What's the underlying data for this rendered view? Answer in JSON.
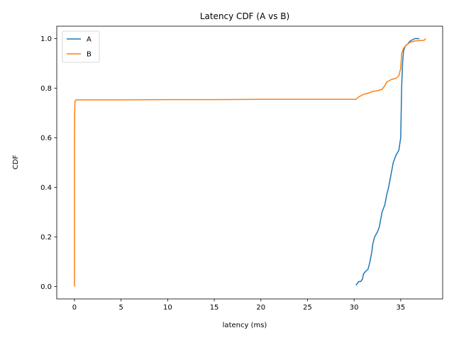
{
  "chart_data": {
    "type": "line",
    "title": "Latency CDF (A vs B)",
    "xlabel": "latency (ms)",
    "ylabel": "CDF",
    "xlim": [
      -1.9,
      39.5
    ],
    "ylim": [
      -0.05,
      1.05
    ],
    "xticks": [
      0,
      5,
      10,
      15,
      20,
      25,
      30,
      35
    ],
    "yticks": [
      0.0,
      0.2,
      0.4,
      0.6,
      0.8,
      1.0
    ],
    "xtick_labels": [
      "0",
      "5",
      "10",
      "15",
      "20",
      "25",
      "30",
      "35"
    ],
    "ytick_labels": [
      "0.0",
      "0.2",
      "0.4",
      "0.6",
      "0.8",
      "1.0"
    ],
    "grid": false,
    "legend_position": "upper-left",
    "series": [
      {
        "name": "A",
        "color": "#1f77b4",
        "x": [
          30.2,
          30.5,
          30.7,
          30.9,
          31.0,
          31.2,
          31.5,
          31.7,
          31.9,
          32.0,
          32.2,
          32.5,
          32.7,
          32.9,
          33.0,
          33.3,
          33.5,
          33.7,
          33.9,
          34.2,
          34.5,
          34.8,
          35.0,
          35.05,
          35.1,
          35.2,
          35.3,
          35.5,
          35.8,
          36.0,
          36.5,
          37.0
        ],
        "y": [
          0.005,
          0.02,
          0.02,
          0.03,
          0.05,
          0.06,
          0.07,
          0.1,
          0.14,
          0.17,
          0.2,
          0.22,
          0.24,
          0.28,
          0.3,
          0.33,
          0.37,
          0.4,
          0.44,
          0.5,
          0.53,
          0.55,
          0.6,
          0.7,
          0.8,
          0.9,
          0.95,
          0.97,
          0.98,
          0.99,
          1.0,
          1.0
        ]
      },
      {
        "name": "B",
        "color": "#ff7f0e",
        "x": [
          0.0,
          0.0,
          0.02,
          0.05,
          0.1,
          0.2,
          0.5,
          1.0,
          5,
          10,
          15,
          20,
          25,
          30.2,
          30.5,
          31.0,
          31.5,
          32.0,
          32.5,
          33.0,
          33.3,
          33.5,
          34.0,
          34.5,
          34.8,
          35.0,
          35.1,
          35.3,
          35.5,
          36.0,
          36.5,
          37.0,
          37.5,
          37.7
        ],
        "y": [
          0.0,
          0.5,
          0.7,
          0.74,
          0.752,
          0.753,
          0.753,
          0.753,
          0.753,
          0.754,
          0.754,
          0.755,
          0.755,
          0.755,
          0.765,
          0.775,
          0.78,
          0.787,
          0.79,
          0.795,
          0.81,
          0.825,
          0.835,
          0.84,
          0.85,
          0.88,
          0.94,
          0.96,
          0.97,
          0.985,
          0.99,
          0.992,
          0.993,
          1.0
        ]
      }
    ]
  }
}
